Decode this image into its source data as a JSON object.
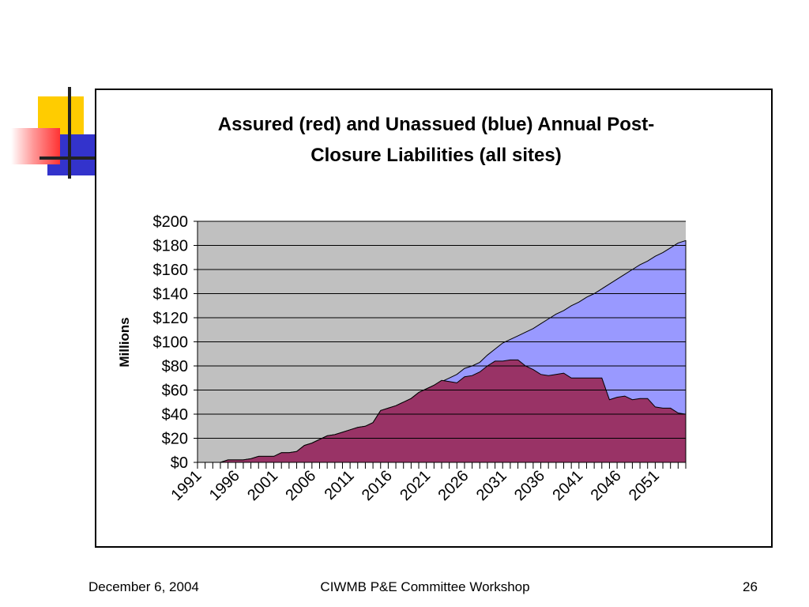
{
  "footer": {
    "date": "December 6, 2004",
    "workshop": "CIWMB P&E Committee Workshop",
    "page_number": "26"
  },
  "colors": {
    "assured": "#993366",
    "unassured": "#9999ff",
    "plot_background": "#c0c0c0",
    "gridline": "#000000",
    "deco_yellow": "#ffcc00",
    "deco_blue": "#3333cc",
    "deco_red": "#ff3333"
  },
  "chart_data": {
    "type": "area",
    "stacked": false,
    "title": "Assured (red) and Unassued (blue)  Annual Post-Closure Liabilities (all sites)",
    "title_lines": [
      "Assured (red) and Unassued (blue)  Annual Post-",
      "Closure Liabilities (all sites)"
    ],
    "xlabel": "",
    "ylabel": "Millions",
    "ylim": [
      0,
      200
    ],
    "y_ticks": [
      0,
      20,
      40,
      60,
      80,
      100,
      120,
      140,
      160,
      180,
      200
    ],
    "y_tick_labels": [
      "$0",
      "$20",
      "$40",
      "$60",
      "$80",
      "$100",
      "$120",
      "$140",
      "$160",
      "$180",
      "$200"
    ],
    "x_tick_labels": [
      "1991",
      "1996",
      "2001",
      "2006",
      "2011",
      "2016",
      "2021",
      "2026",
      "2031",
      "2036",
      "2041",
      "2046",
      "2051"
    ],
    "x": [
      1991,
      1992,
      1993,
      1994,
      1995,
      1996,
      1997,
      1998,
      1999,
      2000,
      2001,
      2002,
      2003,
      2004,
      2005,
      2006,
      2007,
      2008,
      2009,
      2010,
      2011,
      2012,
      2013,
      2014,
      2015,
      2016,
      2017,
      2018,
      2019,
      2020,
      2021,
      2022,
      2023,
      2024,
      2025,
      2026,
      2027,
      2028,
      2029,
      2030,
      2031,
      2032,
      2033,
      2034,
      2035,
      2036,
      2037,
      2038,
      2039,
      2040,
      2041,
      2042,
      2043,
      2044,
      2045,
      2046,
      2047,
      2048,
      2049,
      2050,
      2051,
      2052,
      2053,
      2054,
      2055
    ],
    "grid": true,
    "legend": "none",
    "series": [
      {
        "name": "Unassued",
        "color_key": "unassured",
        "values": [
          0,
          0,
          0,
          0,
          2,
          2,
          2,
          3,
          5,
          5,
          5,
          8,
          8,
          9,
          14,
          16,
          19,
          22,
          23,
          25,
          27,
          29,
          30,
          33,
          43,
          45,
          47,
          50,
          53,
          58,
          61,
          64,
          67,
          70,
          73,
          78,
          80,
          83,
          89,
          94,
          99,
          102,
          105,
          108,
          111,
          115,
          119,
          123,
          126,
          130,
          133,
          137,
          140,
          144,
          148,
          152,
          156,
          160,
          164,
          167,
          171,
          174,
          178,
          182,
          184
        ]
      },
      {
        "name": "Assured",
        "color_key": "assured",
        "values": [
          0,
          0,
          0,
          0,
          2,
          2,
          2,
          3,
          5,
          5,
          5,
          8,
          8,
          9,
          14,
          16,
          19,
          22,
          23,
          25,
          27,
          29,
          30,
          33,
          43,
          45,
          47,
          50,
          53,
          58,
          61,
          64,
          68,
          67,
          66,
          71,
          72,
          75,
          80,
          84,
          84,
          85,
          85,
          80,
          77,
          73,
          72,
          73,
          74,
          70,
          70,
          70,
          70,
          70,
          52,
          54,
          55,
          52,
          53,
          53,
          46,
          45,
          45,
          41,
          40
        ]
      }
    ]
  }
}
